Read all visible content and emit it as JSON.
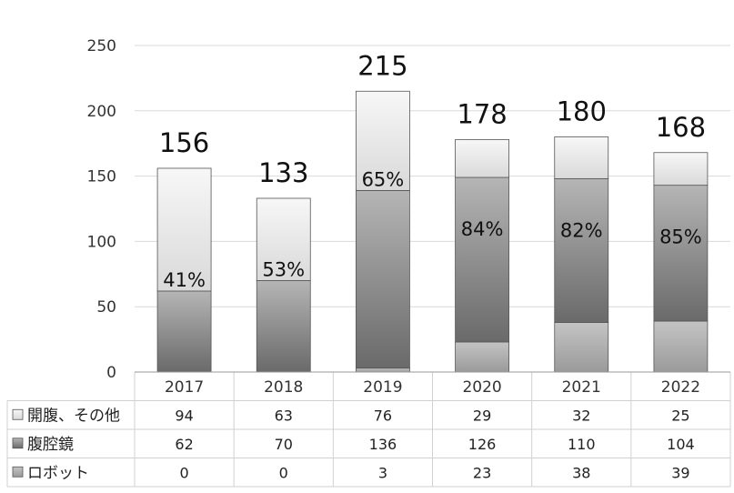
{
  "chart_data": {
    "type": "bar",
    "stacked": true,
    "categories": [
      "2017",
      "2018",
      "2019",
      "2020",
      "2021",
      "2022"
    ],
    "ylim": [
      0,
      250
    ],
    "yticks": [
      0,
      50,
      100,
      150,
      200,
      250
    ],
    "grid": true,
    "series": [
      {
        "name": "ロボット",
        "values": [
          0,
          0,
          3,
          23,
          38,
          39
        ],
        "color": "#a6a6a6"
      },
      {
        "name": "腹腔鏡",
        "values": [
          62,
          70,
          136,
          126,
          110,
          104
        ],
        "color": "#7f7f7f"
      },
      {
        "name": "開腹、その他",
        "values": [
          94,
          63,
          76,
          29,
          32,
          25
        ],
        "color": "#e7e7e7"
      }
    ],
    "totals": [
      "156",
      "133",
      "215",
      "178",
      "180",
      "168"
    ],
    "percent_labels": [
      "41%",
      "53%",
      "65%",
      "84%",
      "82%",
      "85%"
    ],
    "table_rows": [
      {
        "label": "開腹、その他",
        "values": [
          "94",
          "63",
          "76",
          "29",
          "32",
          "25"
        ]
      },
      {
        "label": "腹腔鏡",
        "values": [
          "62",
          "70",
          "136",
          "126",
          "110",
          "104"
        ]
      },
      {
        "label": "ロボット",
        "values": [
          "0",
          "0",
          "3",
          "23",
          "38",
          "39"
        ]
      }
    ],
    "table_legend_order": [
      "開腹、その他",
      "腹腔鏡",
      "ロボット"
    ]
  }
}
